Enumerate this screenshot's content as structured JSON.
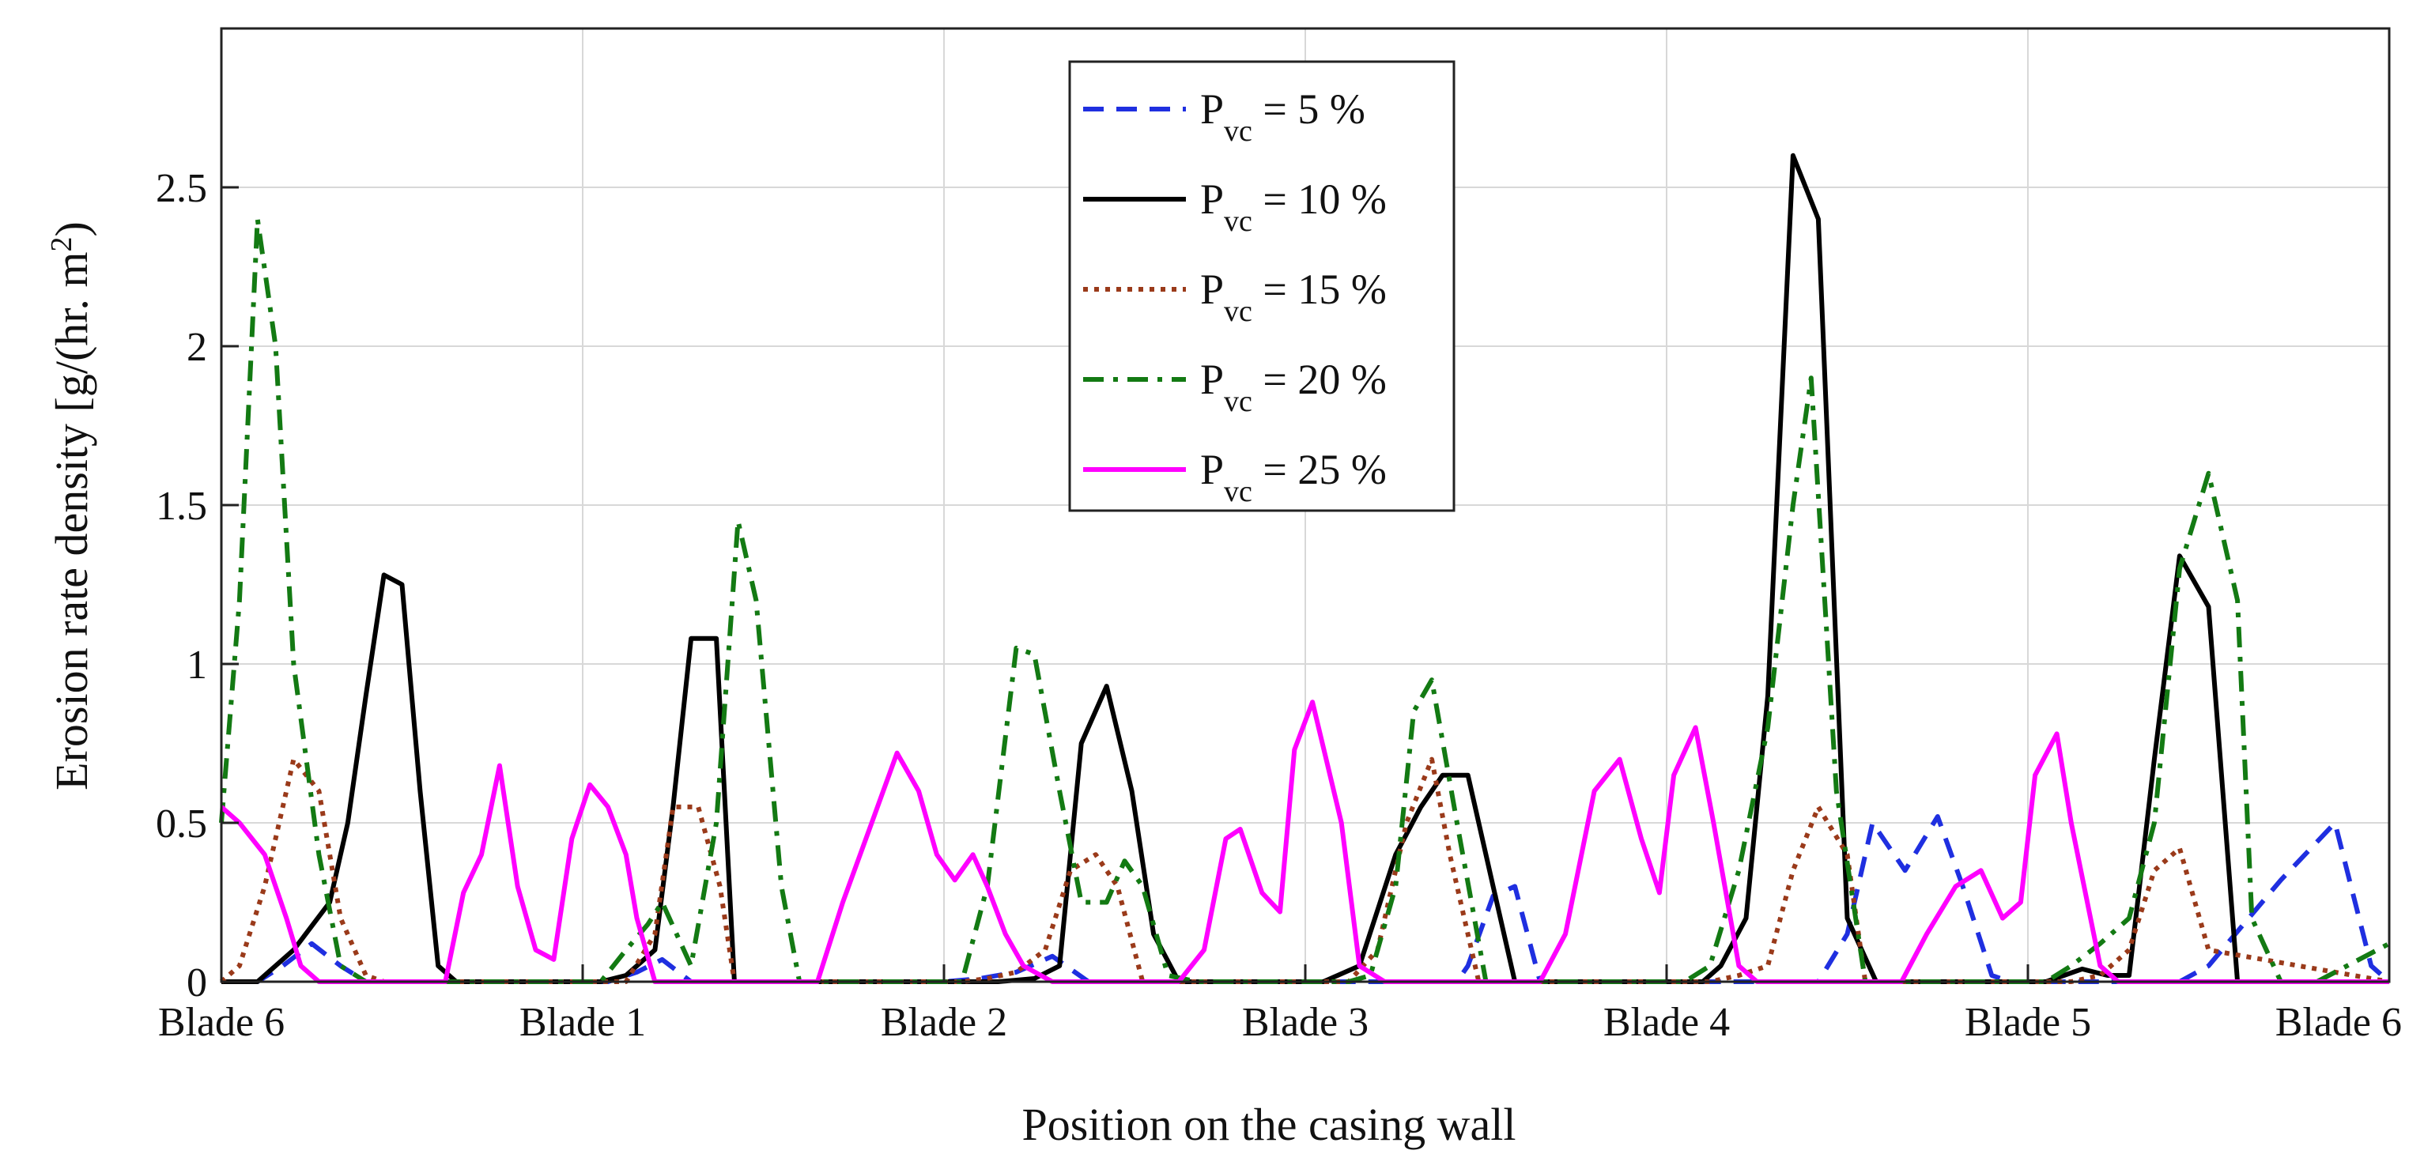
{
  "chart_data": {
    "type": "line",
    "title": "",
    "xlabel": "Position on the casing wall",
    "ylabel_main": "Erosion rate density [g/(hr. m",
    "ylabel_sup": "2",
    "ylabel_close": ")",
    "xlim": [
      0,
      6
    ],
    "ylim": [
      0,
      3
    ],
    "y_ticks": [
      0,
      0.5,
      1,
      1.5,
      2,
      2.5
    ],
    "y_tick_labels": [
      "0",
      "0.5",
      "1",
      "1.5",
      "2",
      "2.5"
    ],
    "x_ticks": [
      0,
      1,
      2,
      3,
      4,
      5,
      6
    ],
    "x_tick_labels": [
      "Blade 6",
      "Blade 1",
      "Blade 2",
      "Blade 3",
      "Blade 4",
      "Blade 5",
      "Blade 6"
    ],
    "grid": true,
    "legend_position": "top-center",
    "series": [
      {
        "name": "Pvc = 5 %",
        "label_base": "P",
        "label_sub": "vc",
        "label_rest": " = 5 %",
        "color": "#1f2fe0",
        "style": "dashed",
        "x": [
          0,
          0.1,
          0.17,
          0.25,
          0.33,
          0.4,
          0.5,
          1.0,
          1.07,
          1.15,
          1.22,
          1.3,
          2.0,
          2.1,
          2.2,
          2.3,
          2.4,
          3.0,
          3.42,
          3.45,
          3.52,
          3.58,
          3.65,
          4.0,
          4.42,
          4.5,
          4.57,
          4.66,
          4.75,
          4.82,
          4.9,
          4.95,
          5.42,
          5.5,
          5.7,
          5.85,
          5.95,
          6.0
        ],
        "y": [
          0,
          0,
          0.05,
          0.12,
          0.05,
          0,
          0,
          0,
          0,
          0.03,
          0.07,
          0,
          0,
          0.01,
          0.03,
          0.08,
          0,
          0,
          0,
          0.05,
          0.27,
          0.3,
          0,
          0,
          0,
          0.15,
          0.5,
          0.35,
          0.52,
          0.3,
          0.02,
          0,
          0,
          0.05,
          0.32,
          0.5,
          0.05,
          0
        ]
      },
      {
        "name": "Pvc = 10 %",
        "label_base": "P",
        "label_sub": "vc",
        "label_rest": " = 10 %",
        "color": "#000000",
        "style": "solid",
        "x": [
          0,
          0.1,
          0.2,
          0.3,
          0.35,
          0.4,
          0.45,
          0.5,
          0.55,
          0.6,
          0.65,
          1.0,
          1.05,
          1.12,
          1.2,
          1.25,
          1.3,
          1.37,
          1.42,
          2.0,
          2.05,
          2.1,
          2.15,
          2.25,
          2.32,
          2.38,
          2.45,
          2.52,
          2.58,
          2.65,
          3.0,
          3.05,
          3.15,
          3.25,
          3.32,
          3.38,
          3.45,
          3.52,
          3.58,
          3.65,
          4.0,
          4.05,
          4.1,
          4.15,
          4.22,
          4.28,
          4.35,
          4.42,
          4.5,
          4.58,
          4.65,
          5.0,
          5.05,
          5.1,
          5.15,
          5.22,
          5.28,
          5.35,
          5.42,
          5.5,
          5.58,
          6.0
        ],
        "y": [
          0,
          0,
          0.1,
          0.25,
          0.5,
          0.9,
          1.28,
          1.25,
          0.6,
          0.05,
          0,
          0,
          0,
          0.02,
          0.1,
          0.55,
          1.08,
          1.08,
          0,
          0,
          0,
          0,
          0,
          0.01,
          0.05,
          0.75,
          0.93,
          0.6,
          0.15,
          0,
          0,
          0,
          0.05,
          0.4,
          0.55,
          0.65,
          0.65,
          0.3,
          0,
          0,
          0,
          0,
          0,
          0.05,
          0.2,
          0.9,
          2.6,
          2.4,
          0.2,
          0,
          0,
          0,
          0,
          0.02,
          0.04,
          0.02,
          0.02,
          0.7,
          1.34,
          1.18,
          0,
          0
        ]
      },
      {
        "name": "Pvc = 15 %",
        "label_base": "P",
        "label_sub": "vc",
        "label_rest": " = 15 %",
        "color": "#9a3a1a",
        "style": "dotted",
        "x": [
          0,
          0.05,
          0.12,
          0.2,
          0.27,
          0.33,
          0.4,
          0.45,
          1.0,
          1.05,
          1.12,
          1.2,
          1.25,
          1.32,
          1.38,
          1.42,
          2.0,
          2.05,
          2.12,
          2.2,
          2.28,
          2.35,
          2.42,
          2.48,
          2.55,
          3.0,
          3.05,
          3.12,
          3.2,
          3.28,
          3.35,
          3.4,
          3.48,
          3.55,
          4.0,
          4.05,
          4.12,
          4.2,
          4.28,
          4.35,
          4.42,
          4.5,
          4.55,
          5.0,
          5.05,
          5.12,
          5.2,
          5.28,
          5.35,
          5.42,
          5.5,
          6.0
        ],
        "y": [
          0,
          0.05,
          0.3,
          0.7,
          0.6,
          0.2,
          0.02,
          0,
          0,
          0,
          0,
          0.15,
          0.55,
          0.55,
          0.3,
          0,
          0,
          0,
          0.01,
          0.03,
          0.1,
          0.35,
          0.4,
          0.3,
          0,
          0,
          0,
          0,
          0.1,
          0.5,
          0.7,
          0.4,
          0,
          0,
          0,
          0,
          0,
          0.02,
          0.05,
          0.35,
          0.55,
          0.4,
          0,
          0,
          0,
          0,
          0.02,
          0.1,
          0.35,
          0.42,
          0.1,
          0
        ]
      },
      {
        "name": "Pvc = 20 %",
        "label_base": "P",
        "label_sub": "vc",
        "label_rest": " = 20 %",
        "color": "#137a13",
        "style": "dashdot",
        "x": [
          0,
          0.05,
          0.1,
          0.15,
          0.2,
          0.27,
          0.33,
          0.4,
          0.45,
          0.5,
          0.55,
          1.0,
          1.05,
          1.12,
          1.18,
          1.22,
          1.3,
          1.37,
          1.43,
          1.48,
          1.55,
          1.6,
          2.0,
          2.05,
          2.12,
          2.2,
          2.25,
          2.32,
          2.38,
          2.45,
          2.5,
          2.55,
          2.62,
          2.7,
          3.0,
          3.05,
          3.12,
          3.18,
          3.25,
          3.3,
          3.35,
          3.42,
          3.5,
          4.0,
          4.05,
          4.12,
          4.2,
          4.28,
          4.35,
          4.4,
          4.47,
          4.55,
          4.62,
          5.0,
          5.05,
          5.12,
          5.2,
          5.28,
          5.35,
          5.42,
          5.5,
          5.58,
          5.62,
          5.7,
          5.8,
          6.0
        ],
        "y": [
          0.5,
          1.2,
          2.4,
          2.0,
          1.0,
          0.4,
          0.05,
          0,
          0,
          0,
          0,
          0,
          0,
          0.1,
          0.18,
          0.25,
          0.05,
          0.5,
          1.45,
          1.2,
          0.3,
          0,
          0,
          0,
          0.3,
          1.05,
          1.03,
          0.6,
          0.25,
          0.25,
          0.38,
          0.3,
          0.02,
          0,
          0,
          0,
          0,
          0.02,
          0.3,
          0.85,
          0.95,
          0.5,
          0,
          0,
          0,
          0.05,
          0.35,
          0.8,
          1.5,
          1.9,
          0.6,
          0,
          0,
          0,
          0,
          0.05,
          0.12,
          0.2,
          0.5,
          1.3,
          1.6,
          1.2,
          0.2,
          0,
          0,
          0.12
        ]
      },
      {
        "name": "Pvc = 25 %",
        "label_base": "P",
        "label_sub": "vc",
        "label_rest": " = 25 %",
        "color": "#ff00ff",
        "style": "solid",
        "x": [
          0,
          0.05,
          0.12,
          0.18,
          0.22,
          0.27,
          0.4,
          0.6,
          0.62,
          0.67,
          0.72,
          0.77,
          0.82,
          0.87,
          0.92,
          0.97,
          1.02,
          1.07,
          1.12,
          1.15,
          1.2,
          1.4,
          1.6,
          1.65,
          1.72,
          1.8,
          1.87,
          1.93,
          1.98,
          2.03,
          2.08,
          2.12,
          2.17,
          2.22,
          2.3,
          2.6,
          2.65,
          2.72,
          2.78,
          2.82,
          2.88,
          2.93,
          2.97,
          3.02,
          3.1,
          3.15,
          3.22,
          3.4,
          3.6,
          3.65,
          3.72,
          3.8,
          3.87,
          3.93,
          3.98,
          4.02,
          4.08,
          4.13,
          4.2,
          4.25,
          4.4,
          4.6,
          4.65,
          4.72,
          4.8,
          4.87,
          4.93,
          4.98,
          5.02,
          5.08,
          5.12,
          5.2,
          5.25,
          5.4,
          6.0
        ],
        "y": [
          0.55,
          0.5,
          0.4,
          0.2,
          0.05,
          0,
          0,
          0,
          0,
          0.28,
          0.4,
          0.68,
          0.3,
          0.1,
          0.07,
          0.45,
          0.62,
          0.55,
          0.4,
          0.2,
          0,
          0,
          0,
          0,
          0.25,
          0.5,
          0.72,
          0.6,
          0.4,
          0.32,
          0.4,
          0.3,
          0.15,
          0.05,
          0,
          0,
          0,
          0.1,
          0.45,
          0.48,
          0.28,
          0.22,
          0.73,
          0.88,
          0.5,
          0.05,
          0,
          0,
          0,
          0,
          0.15,
          0.6,
          0.7,
          0.45,
          0.28,
          0.65,
          0.8,
          0.5,
          0.05,
          0,
          0,
          0,
          0,
          0.15,
          0.3,
          0.35,
          0.2,
          0.25,
          0.65,
          0.78,
          0.5,
          0.05,
          0,
          0,
          0
        ]
      }
    ]
  }
}
